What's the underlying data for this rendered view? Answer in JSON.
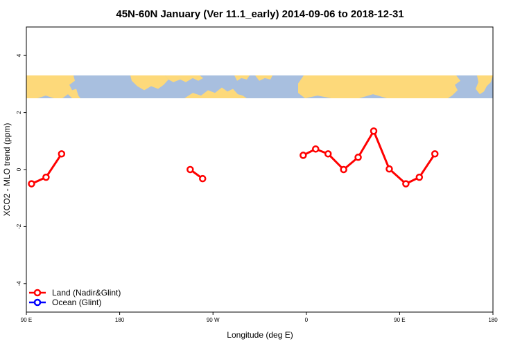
{
  "chart_data": {
    "type": "line",
    "title": "45N-60N January (Ver 11.1_early)   2014-09-06 to 2018-12-31",
    "xlabel": "Longitude (deg E)",
    "ylabel": "XCO2 - MLO trend (ppm)",
    "xlim": [
      90,
      450
    ],
    "ylim": [
      -5,
      5
    ],
    "x_ticks": [
      {
        "value": 90,
        "label": "90 E"
      },
      {
        "value": 180,
        "label": "180"
      },
      {
        "value": 270,
        "label": "90 W"
      },
      {
        "value": 360,
        "label": "0"
      },
      {
        "value": 450,
        "label": "90 E"
      },
      {
        "value": 540,
        "label": "180"
      }
    ],
    "y_ticks": [
      {
        "value": -4,
        "label": "-4"
      },
      {
        "value": -2,
        "label": "-2"
      },
      {
        "value": 0,
        "label": "0"
      },
      {
        "value": 2,
        "label": "2"
      },
      {
        "value": 4,
        "label": "4"
      }
    ],
    "map_band": {
      "ymin": 2.5,
      "ymax": 3.3,
      "ocean_color": "#a8bfdf",
      "land_color": "#fdd97a"
    },
    "legend_position": "bottom-left",
    "series": [
      {
        "name": "Land (Nadir&Glint)",
        "color": "#ff0000",
        "segments": [
          [
            [
              95,
              -0.5
            ],
            [
              109,
              -0.27
            ],
            [
              124,
              0.55
            ]
          ],
          [
            [
              248,
              0.0
            ],
            [
              260,
              -0.32
            ]
          ],
          [
            [
              357,
              0.5
            ],
            [
              369,
              0.72
            ],
            [
              381,
              0.55
            ],
            [
              396,
              0.0
            ],
            [
              410,
              0.43
            ],
            [
              425,
              1.35
            ],
            [
              440,
              0.02
            ],
            [
              456,
              -0.5
            ],
            [
              469,
              -0.27
            ],
            [
              484,
              0.55
            ]
          ]
        ]
      },
      {
        "name": "Ocean (Glint)",
        "color": "#0000ff",
        "segments": []
      }
    ]
  }
}
